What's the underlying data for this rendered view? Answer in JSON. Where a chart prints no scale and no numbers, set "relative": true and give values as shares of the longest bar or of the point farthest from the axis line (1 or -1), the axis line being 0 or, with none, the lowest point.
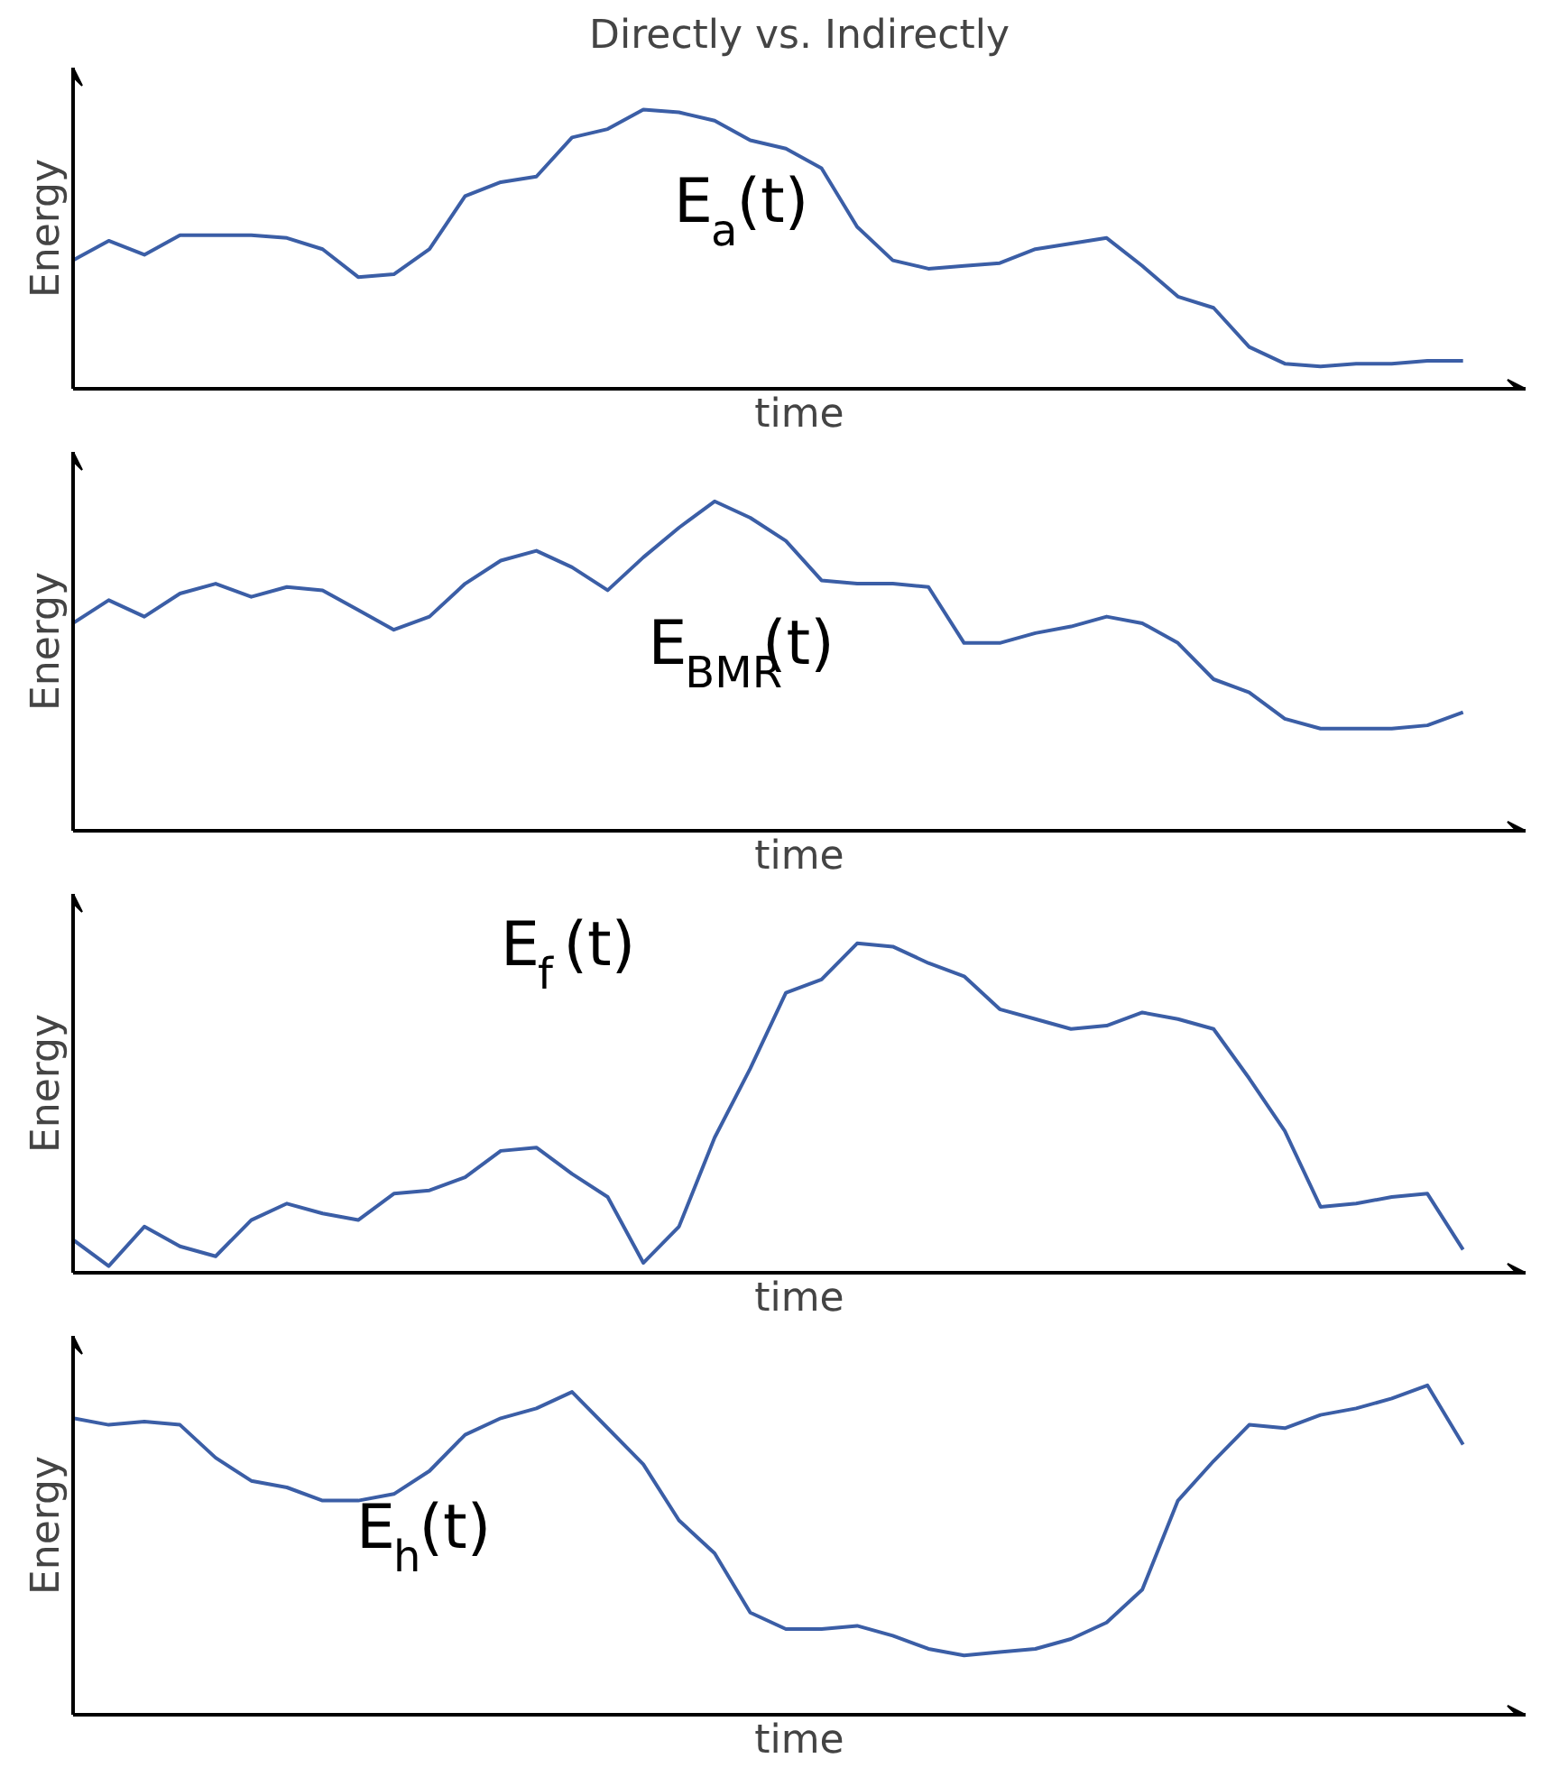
{
  "chart_data": [
    {
      "type": "line",
      "relative": true,
      "title": "Directly vs. Indirectly",
      "xlabel": "time",
      "ylabel": "Energy",
      "annotations": [
        "E$_{a}$(t)"
      ],
      "categories": [
        null,
        null,
        null,
        null,
        null,
        null,
        null,
        null,
        null,
        null,
        null,
        null,
        null,
        null,
        null,
        null,
        null,
        null,
        null,
        null,
        null,
        null,
        null,
        null,
        null,
        null,
        null,
        null,
        null,
        null,
        null,
        null,
        null,
        null,
        null,
        null,
        null,
        null,
        null,
        null
      ],
      "series": [
        {
          "color": "#3b5ea6",
          "values": [
            0.46,
            0.53,
            0.48,
            0.55,
            0.55,
            0.55,
            0.54,
            0.5,
            0.4,
            0.41,
            0.5,
            0.69,
            0.74,
            0.76,
            0.9,
            0.93,
            1.0,
            0.99,
            0.96,
            0.89,
            0.86,
            0.79,
            0.58,
            0.46,
            0.43,
            0.44,
            0.45,
            0.5,
            0.52,
            0.54,
            0.44,
            0.33,
            0.29,
            0.15,
            0.09,
            0.08,
            0.09,
            0.09,
            0.1,
            0.1
          ]
        }
      ]
    },
    {
      "type": "line",
      "relative": true,
      "xlabel": "time",
      "ylabel": "Energy",
      "annotations": [
        "E$_{BMR}$(t)"
      ],
      "categories": [
        null,
        null,
        null,
        null,
        null,
        null,
        null,
        null,
        null,
        null,
        null,
        null,
        null,
        null,
        null,
        null,
        null,
        null,
        null,
        null,
        null,
        null,
        null,
        null,
        null,
        null,
        null,
        null,
        null,
        null,
        null,
        null,
        null,
        null,
        null,
        null,
        null,
        null,
        null,
        null
      ],
      "series": [
        {
          "color": "#3b5ea6",
          "values": [
            0.63,
            0.7,
            0.65,
            0.72,
            0.75,
            0.71,
            0.74,
            0.73,
            0.67,
            0.61,
            0.65,
            0.75,
            0.82,
            0.85,
            0.8,
            0.73,
            0.83,
            0.92,
            1.0,
            0.95,
            0.88,
            0.76,
            0.75,
            0.75,
            0.74,
            0.57,
            0.57,
            0.6,
            0.62,
            0.65,
            0.63,
            0.57,
            0.46,
            0.42,
            0.34,
            0.31,
            0.31,
            0.31,
            0.32,
            0.36
          ]
        }
      ]
    },
    {
      "type": "line",
      "relative": true,
      "xlabel": "time",
      "ylabel": "Energy",
      "annotations": [
        "E$_{f}$(t)"
      ],
      "categories": [
        null,
        null,
        null,
        null,
        null,
        null,
        null,
        null,
        null,
        null,
        null,
        null,
        null,
        null,
        null,
        null,
        null,
        null,
        null,
        null,
        null,
        null,
        null,
        null,
        null,
        null,
        null,
        null,
        null,
        null,
        null,
        null,
        null,
        null,
        null,
        null,
        null,
        null,
        null,
        null
      ],
      "series": [
        {
          "color": "#3b5ea6",
          "values": [
            0.1,
            0.02,
            0.14,
            0.08,
            0.05,
            0.16,
            0.21,
            0.18,
            0.16,
            0.24,
            0.25,
            0.29,
            0.37,
            0.38,
            0.3,
            0.23,
            0.03,
            0.14,
            0.41,
            0.62,
            0.85,
            0.89,
            1.0,
            0.99,
            0.94,
            0.9,
            0.8,
            0.77,
            0.74,
            0.75,
            0.79,
            0.77,
            0.74,
            0.59,
            0.43,
            0.2,
            0.21,
            0.23,
            0.24,
            0.07
          ]
        }
      ]
    },
    {
      "type": "line",
      "relative": true,
      "xlabel": "time",
      "ylabel": "Energy",
      "annotations": [
        "E$_{h}$(t)"
      ],
      "categories": [
        null,
        null,
        null,
        null,
        null,
        null,
        null,
        null,
        null,
        null,
        null,
        null,
        null,
        null,
        null,
        null,
        null,
        null,
        null,
        null,
        null,
        null,
        null,
        null,
        null,
        null,
        null,
        null,
        null,
        null,
        null,
        null,
        null,
        null,
        null,
        null,
        null,
        null,
        null,
        null
      ],
      "series": [
        {
          "color": "#3b5ea6",
          "values": [
            0.9,
            0.88,
            0.89,
            0.88,
            0.78,
            0.71,
            0.69,
            0.65,
            0.65,
            0.67,
            0.74,
            0.85,
            0.9,
            0.93,
            0.98,
            0.87,
            0.76,
            0.59,
            0.49,
            0.31,
            0.26,
            0.26,
            0.27,
            0.24,
            0.2,
            0.18,
            0.19,
            0.2,
            0.23,
            0.28,
            0.38,
            0.65,
            0.77,
            0.88,
            0.87,
            0.91,
            0.93,
            0.96,
            1.0,
            0.82
          ]
        }
      ]
    }
  ]
}
